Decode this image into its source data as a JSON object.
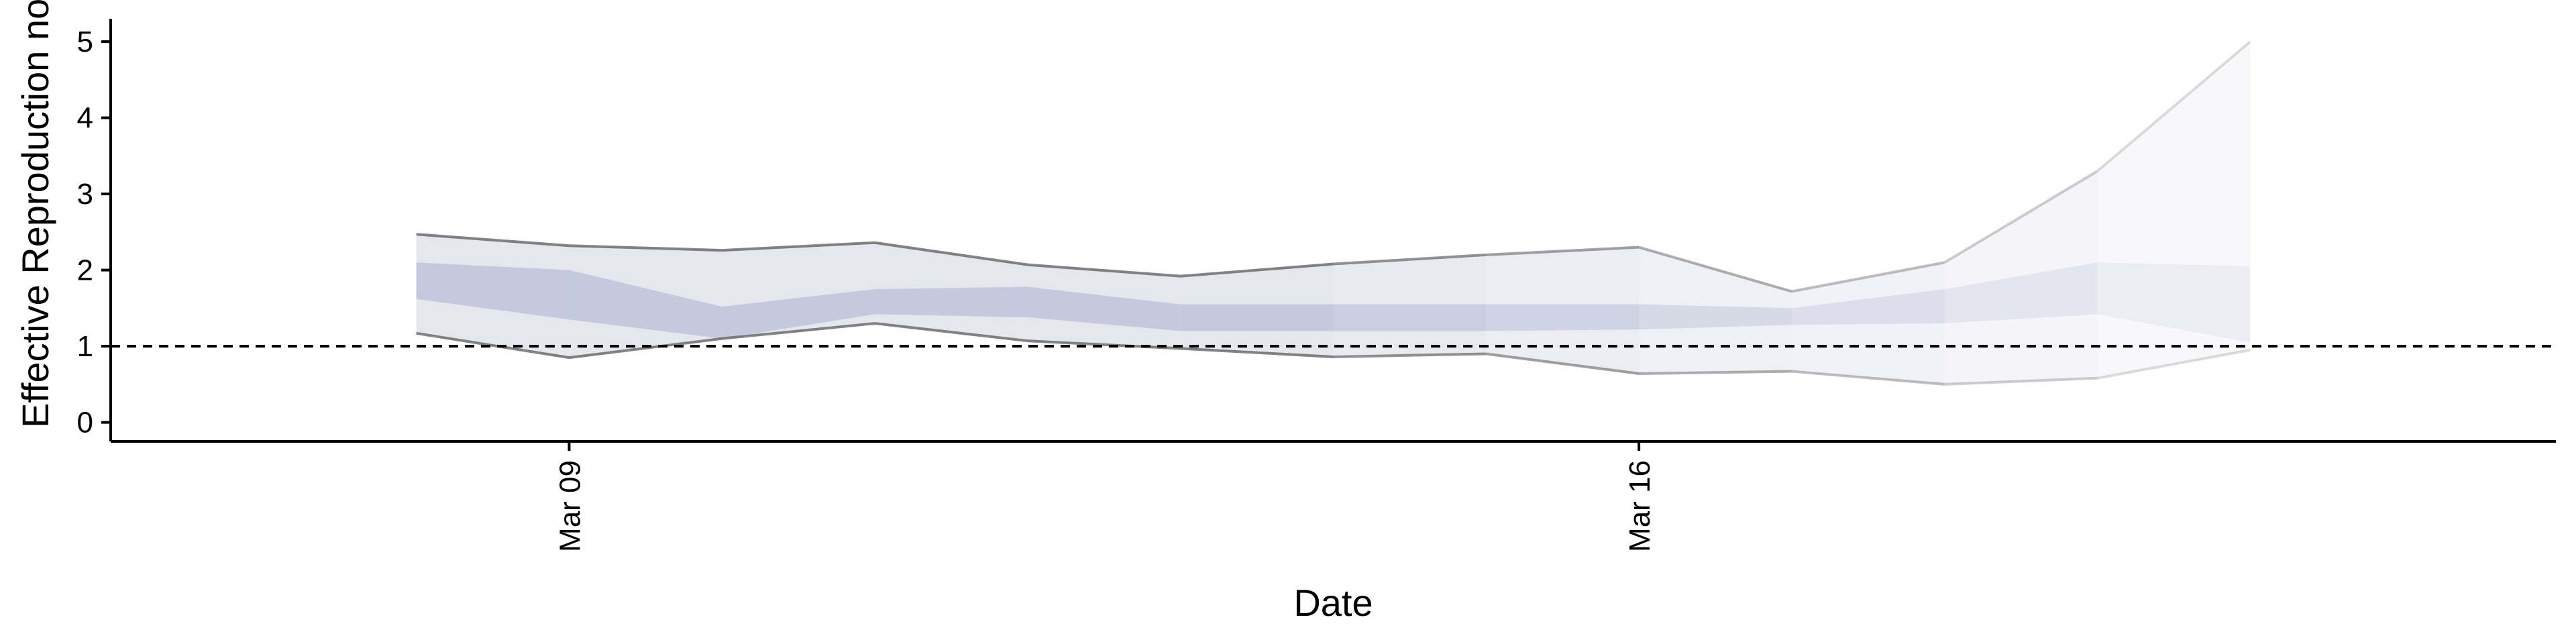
{
  "chart_data": {
    "type": "area",
    "title": "",
    "xlabel": "Date",
    "ylabel": "Effective Reproduction no.",
    "x": [
      "2020-03-08",
      "2020-03-09",
      "2020-03-10",
      "2020-03-11",
      "2020-03-12",
      "2020-03-13",
      "2020-03-14",
      "2020-03-15",
      "2020-03-16",
      "2020-03-17",
      "2020-03-18",
      "2020-03-19",
      "2020-03-20"
    ],
    "x_ticks": [
      "2020-03-09",
      "2020-03-16"
    ],
    "x_tick_labels": [
      "Mar 09",
      "Mar 16"
    ],
    "xlim": [
      "2020-03-06",
      "2020-03-22"
    ],
    "y_ticks": [
      0,
      1,
      2,
      3,
      4,
      5
    ],
    "ylim": [
      -0.25,
      5.3
    ],
    "reference_line": {
      "y": 1,
      "style": "dashed"
    },
    "series": [
      {
        "upper90": [
          2.47,
          2.32,
          2.26,
          2.36,
          2.07,
          1.92,
          2.08,
          2.2,
          2.3,
          1.72,
          2.1,
          3.3,
          5.0
        ],
        "lower90": [
          1.17,
          0.85,
          1.1,
          1.3,
          1.07,
          0.97,
          0.86,
          0.9,
          0.64,
          0.67,
          0.5,
          0.58,
          0.95
        ],
        "upper50": [
          2.1,
          2.0,
          1.52,
          1.75,
          1.78,
          1.55,
          1.55,
          1.55,
          1.55,
          1.5,
          1.75,
          2.1,
          2.05
        ],
        "lower50": [
          1.62,
          1.35,
          1.1,
          1.42,
          1.38,
          1.2,
          1.2,
          1.2,
          1.22,
          1.28,
          1.3,
          1.42,
          1.05
        ]
      }
    ],
    "colors": {
      "band_outer": "#c5c9dc",
      "band_inner": "#a9b0cd",
      "outline": "#444444"
    },
    "grid": false,
    "legend": "none"
  }
}
